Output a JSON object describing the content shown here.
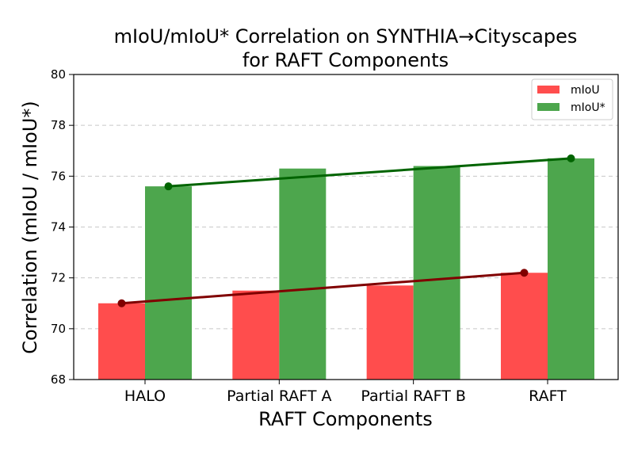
{
  "chart_data": {
    "type": "bar",
    "title": "mIoU/mIoU* Correlation on SYNTHIA→Cityscapes",
    "subtitle": "for RAFT Components",
    "xlabel": "RAFT Components",
    "ylabel": "Correlation (mIoU / mIoU*)",
    "ylim": [
      68,
      80
    ],
    "yticks": [
      68,
      70,
      72,
      74,
      76,
      78,
      80
    ],
    "categories": [
      "HALO",
      "Partial RAFT A",
      "Partial RAFT B",
      "RAFT"
    ],
    "grid": "y-dashed",
    "legend_position": "top-right",
    "series": [
      {
        "name": "mIoU",
        "values": [
          71.0,
          71.5,
          71.7,
          72.2
        ],
        "color": "#ff4d4d"
      },
      {
        "name": "mIoU*",
        "values": [
          75.6,
          76.3,
          76.4,
          76.7
        ],
        "color": "#4da64d"
      }
    ],
    "trend_lines": [
      {
        "series": "mIoU",
        "from": 71.0,
        "to": 72.2,
        "color": "#800000"
      },
      {
        "series": "mIoU*",
        "from": 75.6,
        "to": 76.7,
        "color": "#006400"
      }
    ]
  }
}
